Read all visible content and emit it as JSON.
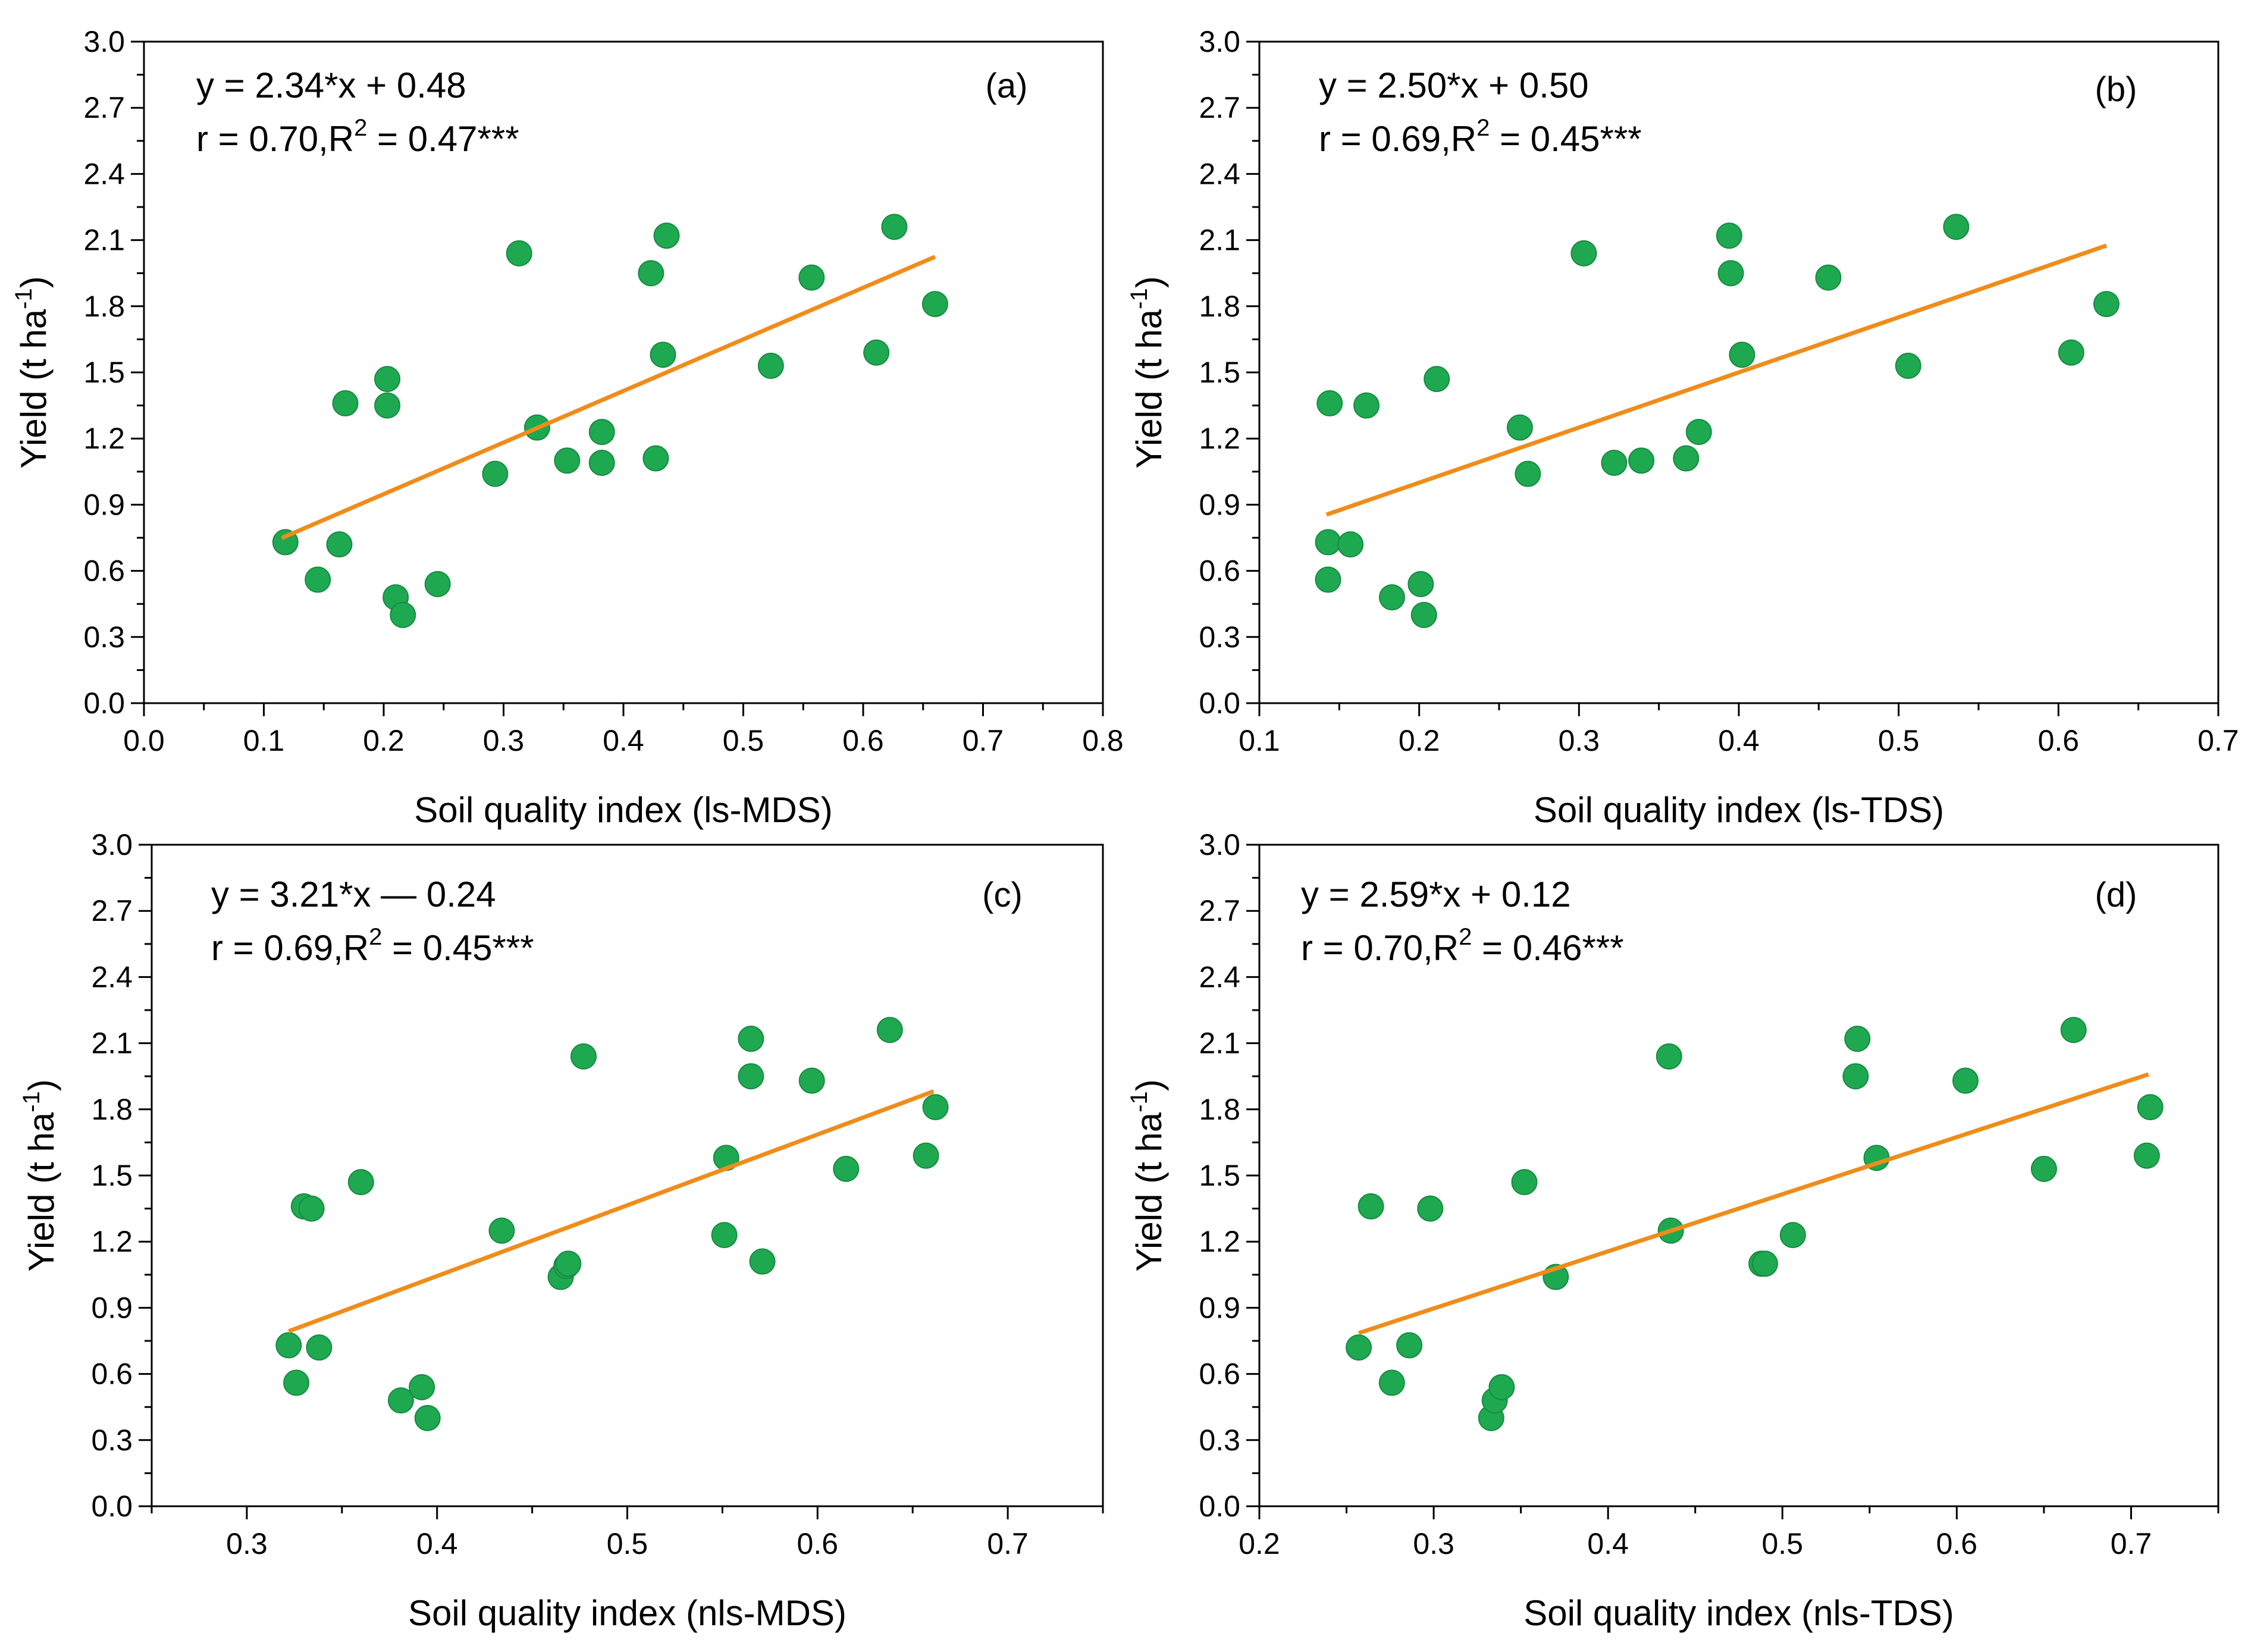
{
  "chart_data": [
    {
      "type": "scatter",
      "panel_label": "(a)",
      "equation": "y = 2.34*x + 0.48",
      "stats_prefix": "r = 0.70,R",
      "stats_sup": "2",
      "stats_suffix": " = 0.47***",
      "xlabel": "Soil quality index (ls-MDS)",
      "ylabel_main": "Yield (t ha",
      "ylabel_sup": "-1",
      "ylabel_end": ")",
      "xlim": [
        0.0,
        0.8
      ],
      "ylim": [
        0.0,
        3.0
      ],
      "xticks": [
        "0.0",
        "0.1",
        "0.2",
        "0.3",
        "0.4",
        "0.5",
        "0.6",
        "0.7",
        "0.8"
      ],
      "yticks": [
        "0.0",
        "0.3",
        "0.6",
        "0.9",
        "1.2",
        "1.5",
        "1.8",
        "2.1",
        "2.4",
        "2.7",
        "3.0"
      ],
      "fit_x": [
        0.115,
        0.66
      ],
      "x": [
        0.118,
        0.145,
        0.168,
        0.163,
        0.203,
        0.203,
        0.21,
        0.216,
        0.245,
        0.293,
        0.313,
        0.328,
        0.353,
        0.382,
        0.382,
        0.423,
        0.427,
        0.433,
        0.436,
        0.523,
        0.557,
        0.611,
        0.626,
        0.66
      ],
      "y": [
        0.73,
        0.56,
        1.36,
        0.72,
        1.47,
        1.35,
        0.48,
        0.4,
        0.54,
        1.04,
        2.04,
        1.25,
        1.1,
        1.23,
        1.09,
        1.95,
        1.11,
        1.58,
        2.12,
        1.53,
        1.93,
        1.59,
        2.16,
        1.81
      ]
    },
    {
      "type": "scatter",
      "panel_label": "(b)",
      "equation": "y = 2.50*x + 0.50",
      "stats_prefix": "r = 0.69,R",
      "stats_sup": "2",
      "stats_suffix": " = 0.45***",
      "xlabel": "Soil quality index (ls-TDS)",
      "ylabel_main": "Yield (t ha",
      "ylabel_sup": "-1",
      "ylabel_end": ")",
      "xlim": [
        0.1,
        0.7
      ],
      "ylim": [
        0.0,
        3.0
      ],
      "xticks": [
        "0.1",
        "0.2",
        "0.3",
        "0.4",
        "0.5",
        "0.6",
        "0.7"
      ],
      "yticks": [
        "0.0",
        "0.3",
        "0.6",
        "0.9",
        "1.2",
        "1.5",
        "1.8",
        "2.1",
        "2.4",
        "2.7",
        "3.0"
      ],
      "fit_x": [
        0.142,
        0.63
      ],
      "x": [
        0.143,
        0.143,
        0.144,
        0.157,
        0.167,
        0.183,
        0.201,
        0.203,
        0.211,
        0.263,
        0.268,
        0.303,
        0.322,
        0.339,
        0.367,
        0.375,
        0.394,
        0.395,
        0.402,
        0.456,
        0.506,
        0.536,
        0.608,
        0.63
      ],
      "y": [
        0.73,
        0.56,
        1.36,
        0.72,
        1.35,
        0.48,
        0.54,
        0.4,
        1.47,
        1.25,
        1.04,
        2.04,
        1.09,
        1.1,
        1.11,
        1.23,
        2.12,
        1.95,
        1.58,
        1.93,
        1.53,
        2.16,
        1.59,
        1.81
      ]
    },
    {
      "type": "scatter",
      "panel_label": "(c)",
      "equation": "y = 3.21*x — 0.24",
      "stats_prefix": "r = 0.69,R",
      "stats_sup": "2",
      "stats_suffix": " = 0.45***",
      "xlabel": "Soil quality index (nls-MDS)",
      "ylabel_main": "Yield (t ha",
      "ylabel_sup": "-1",
      "ylabel_end": ")",
      "xlim": [
        0.25,
        0.75
      ],
      "ylim": [
        0.0,
        3.0
      ],
      "xticks": [
        "0.3",
        "0.4",
        "0.5",
        "0.6",
        "0.7"
      ],
      "xtick_values": [
        0.3,
        0.4,
        0.5,
        0.6,
        0.7
      ],
      "yticks": [
        "0.0",
        "0.3",
        "0.6",
        "0.9",
        "1.2",
        "1.5",
        "1.8",
        "2.1",
        "2.4",
        "2.7",
        "3.0"
      ],
      "fit_x": [
        0.322,
        0.661
      ],
      "x": [
        0.322,
        0.326,
        0.33,
        0.334,
        0.338,
        0.36,
        0.381,
        0.392,
        0.395,
        0.434,
        0.465,
        0.468,
        0.469,
        0.477,
        0.551,
        0.552,
        0.565,
        0.565,
        0.571,
        0.597,
        0.615,
        0.638,
        0.657,
        0.662
      ],
      "y": [
        0.73,
        0.56,
        1.36,
        1.35,
        0.72,
        1.47,
        0.48,
        0.54,
        0.4,
        1.25,
        1.04,
        1.09,
        1.1,
        2.04,
        1.23,
        1.58,
        2.12,
        1.95,
        1.11,
        1.93,
        1.53,
        2.16,
        1.59,
        1.81
      ]
    },
    {
      "type": "scatter",
      "panel_label": "(d)",
      "equation": "y = 2.59*x + 0.12",
      "stats_prefix": "r = 0.70,R",
      "stats_sup": "2",
      "stats_suffix": " = 0.46***",
      "xlabel": "Soil quality index (nls-TDS)",
      "ylabel_main": "Yield (t ha",
      "ylabel_sup": "-1",
      "ylabel_end": ")",
      "xlim": [
        0.2,
        0.75
      ],
      "ylim": [
        0.0,
        3.0
      ],
      "xticks": [
        "0.2",
        "0.3",
        "0.4",
        "0.5",
        "0.6",
        "0.7"
      ],
      "xtick_values": [
        0.2,
        0.3,
        0.4,
        0.5,
        0.6,
        0.7
      ],
      "yticks": [
        "0.0",
        "0.3",
        "0.6",
        "0.9",
        "1.2",
        "1.5",
        "1.8",
        "2.1",
        "2.4",
        "2.7",
        "3.0"
      ],
      "fit_x": [
        0.257,
        0.71
      ],
      "x": [
        0.257,
        0.264,
        0.276,
        0.286,
        0.298,
        0.333,
        0.335,
        0.339,
        0.352,
        0.37,
        0.435,
        0.436,
        0.488,
        0.49,
        0.506,
        0.542,
        0.543,
        0.554,
        0.605,
        0.65,
        0.667,
        0.709,
        0.711
      ],
      "y": [
        0.72,
        1.36,
        0.56,
        0.73,
        1.35,
        0.4,
        0.48,
        0.54,
        1.47,
        1.04,
        2.04,
        1.25,
        1.1,
        1.1,
        1.23,
        1.95,
        2.12,
        1.58,
        1.93,
        1.53,
        2.16,
        1.59,
        1.81
      ]
    }
  ],
  "colors": {
    "marker": "#1ea951",
    "marker_edge": "#178a40",
    "fit_line": "#f08c1a",
    "axis": "#000000"
  }
}
